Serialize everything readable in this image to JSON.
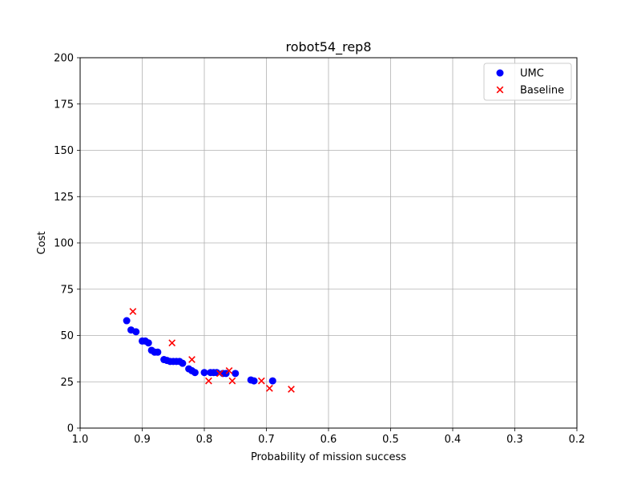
{
  "chart_data": {
    "type": "scatter",
    "title": "robot54_rep8",
    "xlabel": "Probability of mission success",
    "ylabel": "Cost",
    "xlim": [
      1.0,
      0.2
    ],
    "ylim": [
      0,
      200
    ],
    "x_inverted": true,
    "xticks": [
      "1.0",
      "0.9",
      "0.8",
      "0.7",
      "0.6",
      "0.5",
      "0.4",
      "0.3",
      "0.2"
    ],
    "yticks": [
      "0",
      "25",
      "50",
      "75",
      "100",
      "125",
      "150",
      "175",
      "200"
    ],
    "grid": true,
    "legend_position": "top-right",
    "series": [
      {
        "name": "UMC",
        "marker": "circle",
        "color": "#0000ff",
        "points": [
          [
            0.925,
            58
          ],
          [
            0.918,
            53
          ],
          [
            0.91,
            52
          ],
          [
            0.9,
            47
          ],
          [
            0.895,
            47
          ],
          [
            0.89,
            46
          ],
          [
            0.885,
            42
          ],
          [
            0.88,
            41
          ],
          [
            0.875,
            41
          ],
          [
            0.865,
            37
          ],
          [
            0.86,
            36.5
          ],
          [
            0.855,
            36
          ],
          [
            0.85,
            36
          ],
          [
            0.845,
            36
          ],
          [
            0.84,
            36
          ],
          [
            0.835,
            35
          ],
          [
            0.825,
            32
          ],
          [
            0.82,
            31
          ],
          [
            0.815,
            30
          ],
          [
            0.8,
            30
          ],
          [
            0.79,
            30
          ],
          [
            0.785,
            30
          ],
          [
            0.78,
            30
          ],
          [
            0.77,
            29.5
          ],
          [
            0.765,
            29.5
          ],
          [
            0.75,
            29.5
          ],
          [
            0.725,
            26
          ],
          [
            0.72,
            25.5
          ],
          [
            0.69,
            25.5
          ]
        ]
      },
      {
        "name": "Baseline",
        "marker": "x",
        "color": "#ff0000",
        "points": [
          [
            0.915,
            63
          ],
          [
            0.852,
            46
          ],
          [
            0.82,
            37
          ],
          [
            0.793,
            25.5
          ],
          [
            0.775,
            29.5
          ],
          [
            0.76,
            31
          ],
          [
            0.755,
            25.5
          ],
          [
            0.708,
            25.5
          ],
          [
            0.695,
            21.5
          ],
          [
            0.66,
            21
          ]
        ]
      }
    ]
  }
}
